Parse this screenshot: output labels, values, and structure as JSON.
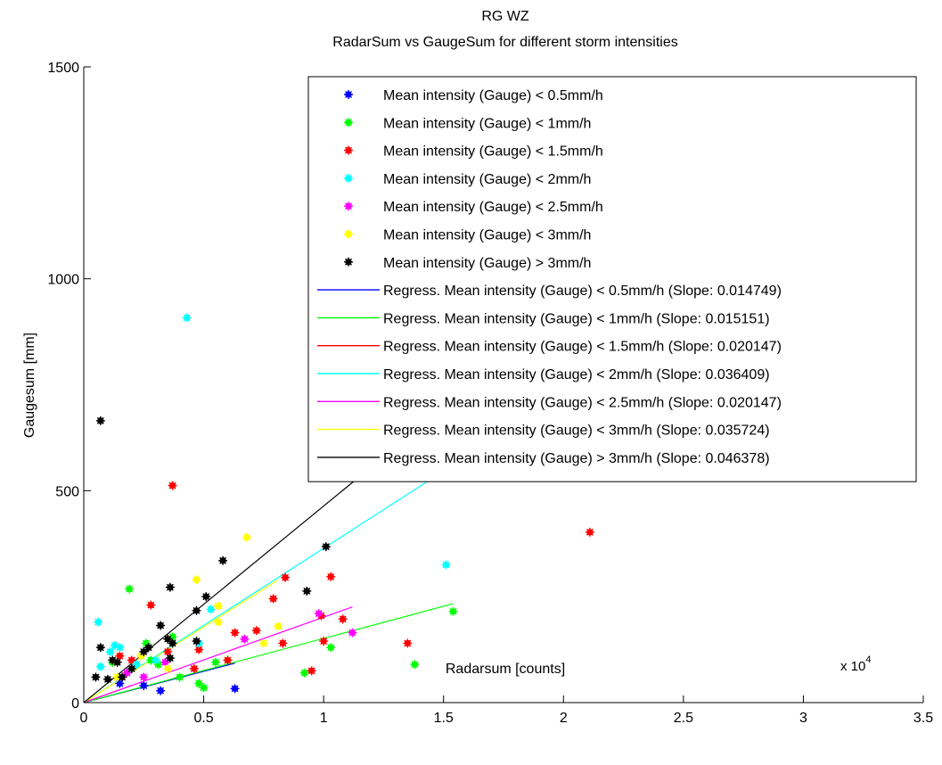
{
  "chart_data": {
    "type": "scatter",
    "title": "RG WZ",
    "subtitle": "RadarSum vs GaugeSum for different storm intensities",
    "xlabel": "Radarsum [counts]",
    "ylabel": "Gaugesum [mm]",
    "x_multiplier_label": "x 10",
    "x_multiplier_exp": "4",
    "xlim": [
      0,
      35000
    ],
    "ylim": [
      0,
      1500
    ],
    "x_ticks": [
      0,
      5000,
      10000,
      15000,
      20000,
      25000,
      30000,
      35000
    ],
    "x_tick_labels": [
      "0",
      "0.5",
      "1",
      "1.5",
      "2",
      "2.5",
      "3",
      "3.5"
    ],
    "y_ticks": [
      0,
      500,
      1000,
      1500
    ],
    "y_tick_labels": [
      "0",
      "500",
      "1000",
      "1500"
    ],
    "grid": false,
    "legend_position": "top-right",
    "series": [
      {
        "name": "Mean intensity (Gauge) < 0.5mm/h",
        "color": "#0000ff",
        "points": [
          [
            3200,
            28
          ],
          [
            6300,
            33
          ],
          [
            2500,
            40
          ],
          [
            1500,
            45
          ]
        ]
      },
      {
        "name": "Mean intensity (Gauge) < 1mm/h",
        "color": "#00ff00",
        "points": [
          [
            1900,
            268
          ],
          [
            2600,
            140
          ],
          [
            3700,
            155
          ],
          [
            5000,
            35
          ],
          [
            4800,
            45
          ],
          [
            9200,
            70
          ],
          [
            10300,
            130
          ],
          [
            13800,
            90
          ],
          [
            15400,
            215
          ],
          [
            1200,
            95
          ],
          [
            2800,
            100
          ],
          [
            4000,
            60
          ],
          [
            5500,
            95
          ],
          [
            6000,
            100
          ],
          [
            3100,
            90
          ]
        ]
      },
      {
        "name": "Mean intensity (Gauge) < 1.5mm/h",
        "color": "#ff0000",
        "points": [
          [
            3700,
            512
          ],
          [
            21100,
            402
          ],
          [
            8400,
            295
          ],
          [
            10300,
            297
          ],
          [
            7900,
            245
          ],
          [
            9900,
            205
          ],
          [
            10800,
            197
          ],
          [
            6300,
            165
          ],
          [
            8300,
            140
          ],
          [
            13500,
            140
          ],
          [
            10000,
            145
          ],
          [
            2800,
            230
          ],
          [
            4800,
            125
          ],
          [
            4600,
            80
          ],
          [
            9500,
            75
          ],
          [
            2000,
            100
          ],
          [
            1500,
            110
          ],
          [
            3500,
            120
          ],
          [
            6000,
            100
          ],
          [
            7200,
            170
          ]
        ]
      },
      {
        "name": "Mean intensity (Gauge) < 2mm/h",
        "color": "#00ffff",
        "points": [
          [
            4300,
            908
          ],
          [
            15100,
            325
          ],
          [
            5300,
            220
          ],
          [
            4800,
            140
          ],
          [
            600,
            190
          ],
          [
            700,
            85
          ],
          [
            1100,
            120
          ],
          [
            1300,
            135
          ],
          [
            1500,
            130
          ],
          [
            2200,
            90
          ],
          [
            3000,
            100
          ]
        ]
      },
      {
        "name": "Mean intensity (Gauge) < 2.5mm/h",
        "color": "#ff00ff",
        "points": [
          [
            9800,
            210
          ],
          [
            11200,
            165
          ],
          [
            6700,
            150
          ],
          [
            3400,
            95
          ],
          [
            2500,
            60
          ],
          [
            1800,
            70
          ]
        ]
      },
      {
        "name": "Mean intensity (Gauge) < 3mm/h",
        "color": "#ffff00",
        "points": [
          [
            6800,
            390
          ],
          [
            4700,
            290
          ],
          [
            5600,
            228
          ],
          [
            5600,
            190
          ],
          [
            8100,
            180
          ],
          [
            3500,
            80
          ],
          [
            2400,
            110
          ],
          [
            7500,
            140
          ],
          [
            1400,
            60
          ]
        ]
      },
      {
        "name": "Mean intensity (Gauge) > 3mm/h",
        "color": "#000000",
        "points": [
          [
            700,
            665
          ],
          [
            10100,
            368
          ],
          [
            5800,
            335
          ],
          [
            9300,
            263
          ],
          [
            3600,
            272
          ],
          [
            5100,
            250
          ],
          [
            4700,
            217
          ],
          [
            3200,
            182
          ],
          [
            3500,
            150
          ],
          [
            3700,
            140
          ],
          [
            4700,
            145
          ],
          [
            3600,
            105
          ],
          [
            2500,
            120
          ],
          [
            2000,
            80
          ],
          [
            1000,
            55
          ],
          [
            1600,
            60
          ],
          [
            700,
            130
          ],
          [
            500,
            60
          ],
          [
            1200,
            100
          ],
          [
            2700,
            130
          ],
          [
            1400,
            95
          ]
        ]
      }
    ],
    "regression": [
      {
        "name": "Regress. Mean intensity (Gauge) < 0.5mm/h (Slope: 0.014749)",
        "color": "#0000ff",
        "slope": 0.014749,
        "x_range": [
          0,
          6300
        ]
      },
      {
        "name": "Regress. Mean intensity (Gauge) < 1mm/h (Slope: 0.015151)",
        "color": "#00ff00",
        "slope": 0.015151,
        "x_range": [
          0,
          15400
        ]
      },
      {
        "name": "Regress. Mean intensity (Gauge) < 1.5mm/h (Slope: 0.020147)",
        "color": "#ff0000",
        "slope": 0.020147,
        "x_range": [
          0,
          2000
        ]
      },
      {
        "name": "Regress. Mean intensity (Gauge) < 2mm/h (Slope: 0.036409)",
        "color": "#00ffff",
        "slope": 0.036409,
        "x_range": [
          0,
          15100
        ]
      },
      {
        "name": "Regress. Mean intensity (Gauge) < 2.5mm/h (Slope: 0.020147)",
        "color": "#ff00ff",
        "slope": 0.020147,
        "x_range": [
          0,
          11200
        ]
      },
      {
        "name": "Regress. Mean intensity (Gauge) < 3mm/h (Slope: 0.035724)",
        "color": "#ffff00",
        "slope": 0.035724,
        "x_range": [
          0,
          8100
        ]
      },
      {
        "name": "Regress. Mean intensity (Gauge) > 3mm/h (Slope: 0.046378)",
        "color": "#000000",
        "slope": 0.046378,
        "x_range": [
          0,
          11500
        ]
      }
    ]
  }
}
